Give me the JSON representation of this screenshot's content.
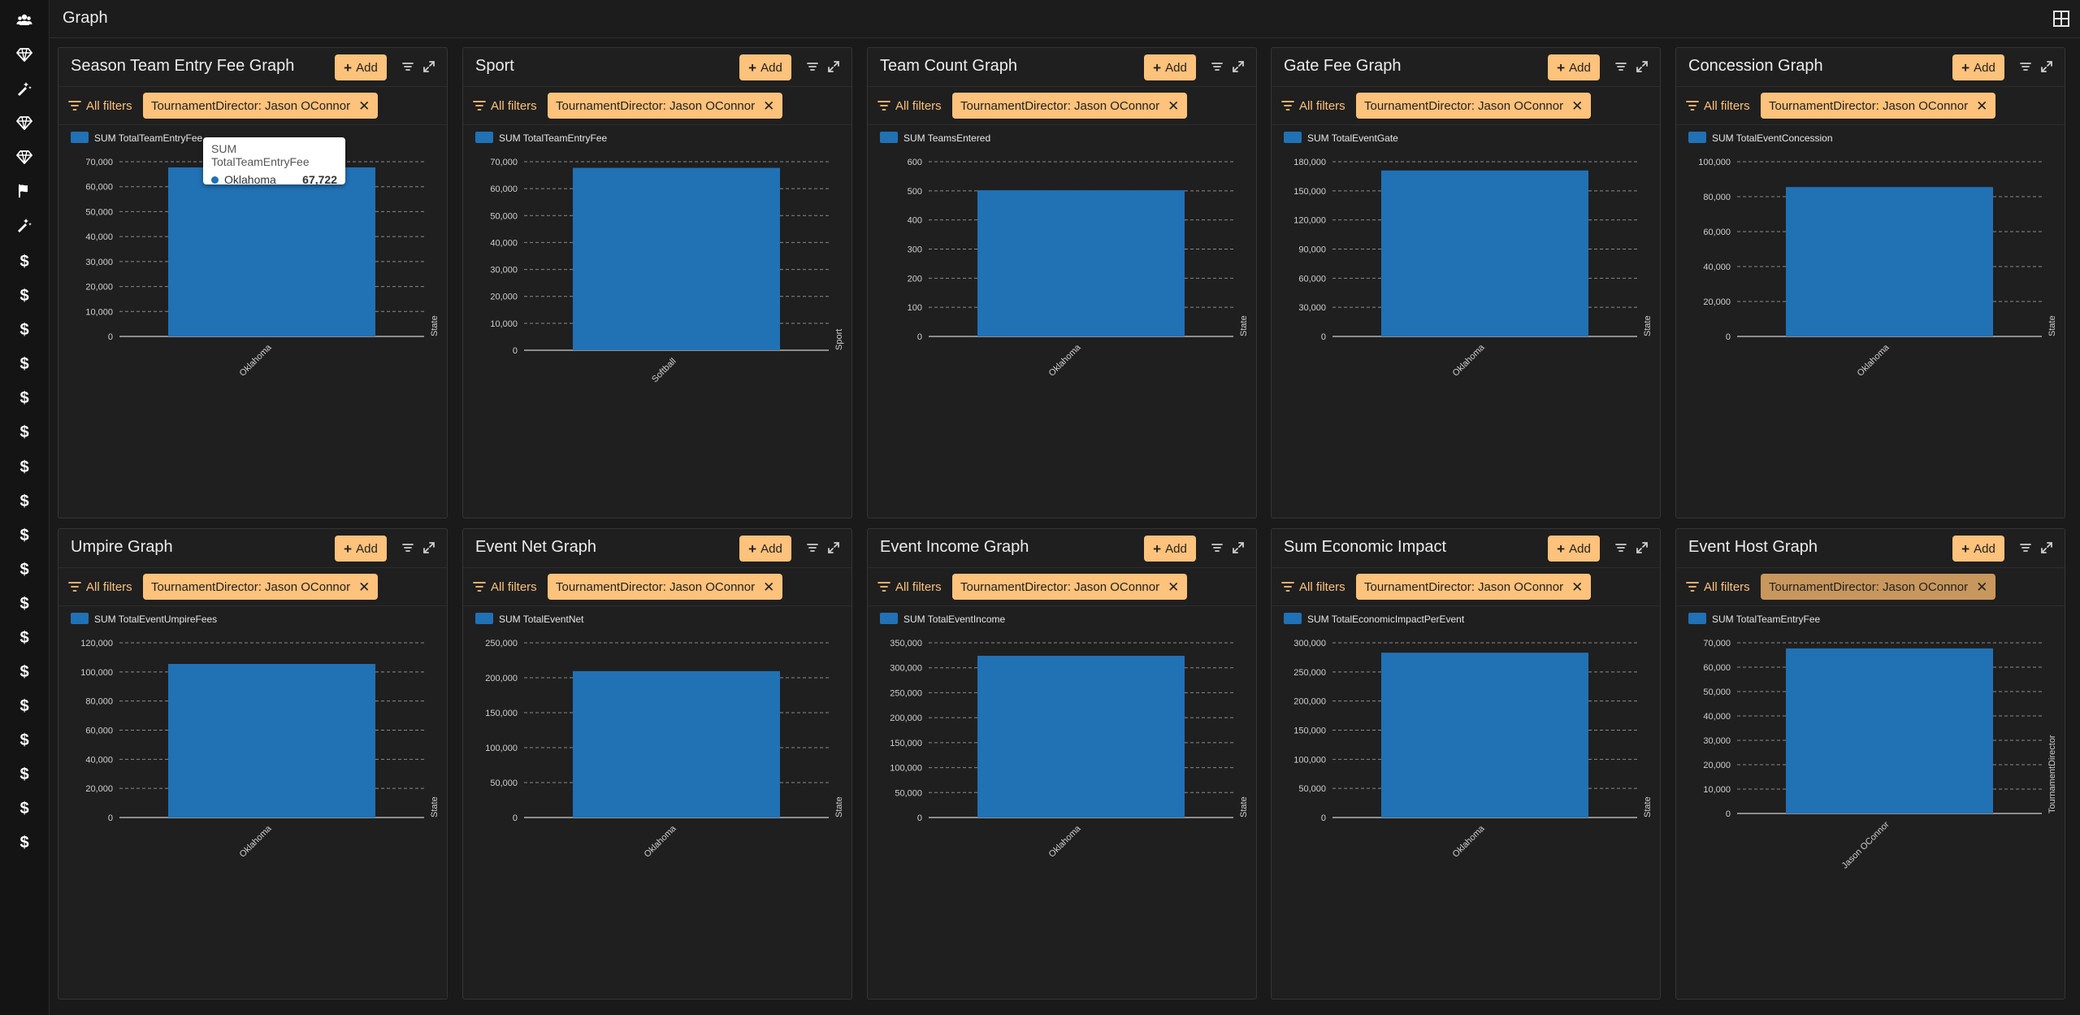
{
  "page": {
    "title": "Graph"
  },
  "icons": {
    "sidebar": [
      "users-icon",
      "diamond-icon",
      "wand-icon",
      "diamond-icon",
      "diamond-icon",
      "flag-icon",
      "wand-icon",
      "dollar-icon",
      "dollar-icon",
      "dollar-icon",
      "dollar-icon",
      "dollar-icon",
      "dollar-icon",
      "dollar-icon",
      "dollar-icon",
      "dollar-icon",
      "dollar-icon",
      "dollar-icon",
      "dollar-icon",
      "dollar-icon",
      "dollar-icon",
      "dollar-icon",
      "dollar-icon",
      "dollar-icon",
      "dollar-icon"
    ],
    "topbar": "layout-grid-icon",
    "panel": [
      "filter-icon",
      "expand-icon",
      "filter-lines-icon",
      "close-icon"
    ]
  },
  "colors": {
    "accent": "#fdc27b",
    "bar": "#2171b5",
    "background": "#1a1a1a"
  },
  "common": {
    "add_label": "Add",
    "all_filters_label": "All filters",
    "filter_chip": "TournamentDirector: Jason OConnor"
  },
  "tooltip": {
    "title": "SUM TotalTeamEntryFee",
    "label": "Oklahoma",
    "value": "67,722"
  },
  "chart_data": [
    {
      "type": "bar",
      "title": "Season Team Entry Fee Graph",
      "legend": "SUM TotalTeamEntryFee",
      "xlabel": "State",
      "categories": [
        "Oklahoma"
      ],
      "values": [
        67722
      ],
      "ylim": [
        0,
        70000
      ],
      "yticks": [
        "0",
        "10,000",
        "20,000",
        "30,000",
        "40,000",
        "50,000",
        "60,000",
        "70,000"
      ],
      "grid": true
    },
    {
      "type": "bar",
      "title": "Sport",
      "legend": "SUM TotalTeamEntryFee",
      "xlabel": "Sport",
      "categories": [
        "Softball"
      ],
      "values": [
        67722
      ],
      "ylim": [
        0,
        70000
      ],
      "yticks": [
        "0",
        "10,000",
        "20,000",
        "30,000",
        "40,000",
        "50,000",
        "60,000",
        "70,000"
      ],
      "grid": true
    },
    {
      "type": "bar",
      "title": "Team Count Graph",
      "legend": "SUM TeamsEntered",
      "xlabel": "State",
      "categories": [
        "Oklahoma"
      ],
      "values": [
        502
      ],
      "ylim": [
        0,
        600
      ],
      "yticks": [
        "0",
        "100",
        "200",
        "300",
        "400",
        "500",
        "600"
      ],
      "grid": true
    },
    {
      "type": "bar",
      "title": "Gate Fee Graph",
      "legend": "SUM TotalEventGate",
      "xlabel": "State",
      "categories": [
        "Oklahoma"
      ],
      "values": [
        171000
      ],
      "ylim": [
        0,
        180000
      ],
      "yticks": [
        "0",
        "30,000",
        "60,000",
        "90,000",
        "120,000",
        "150,000",
        "180,000"
      ],
      "grid": true
    },
    {
      "type": "bar",
      "title": "Concession Graph",
      "legend": "SUM TotalEventConcession",
      "xlabel": "State",
      "categories": [
        "Oklahoma"
      ],
      "values": [
        85500
      ],
      "ylim": [
        0,
        100000
      ],
      "yticks": [
        "0",
        "20,000",
        "40,000",
        "60,000",
        "80,000",
        "100,000"
      ],
      "grid": true
    },
    {
      "type": "bar",
      "title": "Umpire Graph",
      "legend": "SUM TotalEventUmpireFees",
      "xlabel": "State",
      "categories": [
        "Oklahoma"
      ],
      "values": [
        105500
      ],
      "ylim": [
        0,
        120000
      ],
      "yticks": [
        "0",
        "20,000",
        "40,000",
        "60,000",
        "80,000",
        "100,000",
        "120,000"
      ],
      "grid": true
    },
    {
      "type": "bar",
      "title": "Event Net Graph",
      "legend": "SUM TotalEventNet",
      "xlabel": "State",
      "categories": [
        "Oklahoma"
      ],
      "values": [
        209500
      ],
      "ylim": [
        0,
        250000
      ],
      "yticks": [
        "0",
        "50,000",
        "100,000",
        "150,000",
        "200,000",
        "250,000"
      ],
      "grid": true
    },
    {
      "type": "bar",
      "title": "Event Income Graph",
      "legend": "SUM TotalEventIncome",
      "xlabel": "State",
      "categories": [
        "Oklahoma"
      ],
      "values": [
        324000
      ],
      "ylim": [
        0,
        350000
      ],
      "yticks": [
        "0",
        "50,000",
        "100,000",
        "150,000",
        "200,000",
        "250,000",
        "300,000",
        "350,000"
      ],
      "grid": true
    },
    {
      "type": "bar",
      "title": "Sum Economic Impact",
      "legend": "SUM TotalEconomicImpactPerEvent",
      "xlabel": "State",
      "categories": [
        "Oklahoma"
      ],
      "values": [
        283000
      ],
      "ylim": [
        0,
        300000
      ],
      "yticks": [
        "0",
        "50,000",
        "100,000",
        "150,000",
        "200,000",
        "250,000",
        "300,000"
      ],
      "grid": true
    },
    {
      "type": "bar",
      "title": "Event Host Graph",
      "legend": "SUM TotalTeamEntryFee",
      "xlabel": "TournamentDirector",
      "categories": [
        "Jason OConnor"
      ],
      "values": [
        67722
      ],
      "ylim": [
        0,
        70000
      ],
      "yticks": [
        "0",
        "10,000",
        "20,000",
        "30,000",
        "40,000",
        "50,000",
        "60,000",
        "70,000"
      ],
      "grid": true
    }
  ]
}
